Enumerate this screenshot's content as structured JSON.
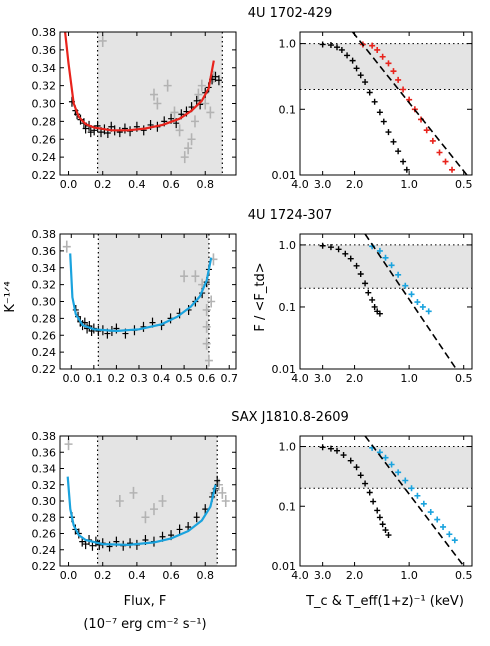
{
  "panels_meta": {
    "left_xlabel": "Flux, F",
    "left_xunits": "(10⁻⁷ erg cm⁻² s⁻¹)",
    "left_ylabel": "K⁻¹ᐟ⁴",
    "right_ylabel": "F / <F_td>",
    "right_xlabel": "T_c & T_eff(1+z)⁻¹ (keV)"
  },
  "colors": {
    "red_fit": "#e8231c",
    "blue_fit": "#1aa3de",
    "band": "#e4e4e4",
    "grey_points": "#b3b3b3",
    "black_points": "#000000"
  },
  "chart_data": [
    {
      "type": "scatter",
      "title": "4U 1702-429",
      "panel": "K_vs_flux",
      "xlim": [
        -0.05,
        0.98
      ],
      "ylim": [
        0.22,
        0.38
      ],
      "xticks": [
        "0.0",
        "0.2",
        "0.4",
        "0.6",
        "0.8"
      ],
      "yticks": [
        "0.22",
        "0.24",
        "0.26",
        "0.28",
        "0.30",
        "0.32",
        "0.34",
        "0.36",
        "0.38"
      ],
      "band": [
        0.17,
        0.9
      ],
      "vlines": [
        0.17,
        0.9
      ],
      "fit_color": "red",
      "fit": [
        [
          -0.02,
          0.38
        ],
        [
          0.0,
          0.345
        ],
        [
          0.03,
          0.3
        ],
        [
          0.06,
          0.285
        ],
        [
          0.1,
          0.277
        ],
        [
          0.15,
          0.273
        ],
        [
          0.25,
          0.27
        ],
        [
          0.35,
          0.27
        ],
        [
          0.45,
          0.272
        ],
        [
          0.55,
          0.276
        ],
        [
          0.65,
          0.283
        ],
        [
          0.72,
          0.292
        ],
        [
          0.78,
          0.303
        ],
        [
          0.82,
          0.317
        ],
        [
          0.85,
          0.348
        ]
      ],
      "points_black": [
        [
          0.02,
          0.302
        ],
        [
          0.04,
          0.292
        ],
        [
          0.05,
          0.288
        ],
        [
          0.07,
          0.282
        ],
        [
          0.09,
          0.278
        ],
        [
          0.1,
          0.272
        ],
        [
          0.12,
          0.275
        ],
        [
          0.13,
          0.268
        ],
        [
          0.15,
          0.27
        ],
        [
          0.17,
          0.275
        ],
        [
          0.19,
          0.268
        ],
        [
          0.21,
          0.271
        ],
        [
          0.23,
          0.267
        ],
        [
          0.25,
          0.274
        ],
        [
          0.27,
          0.27
        ],
        [
          0.3,
          0.268
        ],
        [
          0.33,
          0.272
        ],
        [
          0.36,
          0.269
        ],
        [
          0.4,
          0.274
        ],
        [
          0.44,
          0.27
        ],
        [
          0.48,
          0.276
        ],
        [
          0.52,
          0.274
        ],
        [
          0.56,
          0.28
        ],
        [
          0.6,
          0.283
        ],
        [
          0.63,
          0.278
        ],
        [
          0.66,
          0.288
        ],
        [
          0.69,
          0.291
        ],
        [
          0.72,
          0.296
        ],
        [
          0.75,
          0.303
        ],
        [
          0.77,
          0.299
        ],
        [
          0.8,
          0.312
        ],
        [
          0.82,
          0.318
        ],
        [
          0.84,
          0.327
        ],
        [
          0.86,
          0.33
        ],
        [
          0.88,
          0.326
        ]
      ],
      "points_grey": [
        [
          0.2,
          0.37
        ],
        [
          0.5,
          0.31
        ],
        [
          0.52,
          0.3
        ],
        [
          0.58,
          0.32
        ],
        [
          0.62,
          0.29
        ],
        [
          0.65,
          0.27
        ],
        [
          0.68,
          0.24
        ],
        [
          0.7,
          0.25
        ],
        [
          0.72,
          0.26
        ],
        [
          0.74,
          0.28
        ],
        [
          0.76,
          0.31
        ],
        [
          0.78,
          0.32
        ],
        [
          0.8,
          0.3
        ],
        [
          0.83,
          0.29
        ],
        [
          0.85,
          0.33
        ]
      ]
    },
    {
      "type": "scatter",
      "title": "",
      "panel": "F_vs_T",
      "ylog": true,
      "xlim": [
        4.0,
        0.45
      ],
      "ylim": [
        0.01,
        1.5
      ],
      "xticks": [
        "4.0",
        "3.0",
        "2.0",
        "1.0",
        "0.5"
      ],
      "yticks": [
        "1.0",
        "0.1",
        "0.01"
      ],
      "band": [
        0.2,
        1.0
      ],
      "dashed": [
        [
          2.05,
          1.5
        ],
        [
          0.48,
          0.01
        ]
      ],
      "series_black": [
        [
          3.0,
          0.97
        ],
        [
          2.7,
          0.95
        ],
        [
          2.5,
          0.88
        ],
        [
          2.35,
          0.8
        ],
        [
          2.2,
          0.66
        ],
        [
          2.05,
          0.55
        ],
        [
          1.95,
          0.42
        ],
        [
          1.85,
          0.33
        ],
        [
          1.75,
          0.26
        ],
        [
          1.65,
          0.18
        ],
        [
          1.55,
          0.13
        ],
        [
          1.45,
          0.09
        ],
        [
          1.38,
          0.065
        ],
        [
          1.3,
          0.045
        ],
        [
          1.22,
          0.032
        ],
        [
          1.15,
          0.023
        ],
        [
          1.08,
          0.016
        ],
        [
          1.03,
          0.012
        ]
      ],
      "series_red": [
        [
          1.8,
          0.97
        ],
        [
          1.6,
          0.93
        ],
        [
          1.5,
          0.8
        ],
        [
          1.4,
          0.63
        ],
        [
          1.3,
          0.5
        ],
        [
          1.22,
          0.38
        ],
        [
          1.15,
          0.28
        ],
        [
          1.08,
          0.2
        ],
        [
          1.0,
          0.14
        ],
        [
          0.93,
          0.1
        ],
        [
          0.86,
          0.07
        ],
        [
          0.8,
          0.048
        ],
        [
          0.74,
          0.033
        ],
        [
          0.68,
          0.022
        ],
        [
          0.63,
          0.016
        ],
        [
          0.58,
          0.012
        ]
      ]
    },
    {
      "type": "scatter",
      "title": "4U 1724-307",
      "panel": "K_vs_flux",
      "xlim": [
        -0.05,
        0.73
      ],
      "ylim": [
        0.22,
        0.38
      ],
      "xticks": [
        "0.0",
        "0.1",
        "0.2",
        "0.3",
        "0.4",
        "0.5",
        "0.6",
        "0.7"
      ],
      "yticks": [
        "0.22",
        "0.24",
        "0.26",
        "0.28",
        "0.30",
        "0.32",
        "0.34",
        "0.36",
        "0.38"
      ],
      "band": [
        0.12,
        0.61
      ],
      "vlines": [
        0.12,
        0.61
      ],
      "fit_color": "blue",
      "fit": [
        [
          -0.005,
          0.357
        ],
        [
          0.005,
          0.305
        ],
        [
          0.02,
          0.285
        ],
        [
          0.05,
          0.272
        ],
        [
          0.1,
          0.267
        ],
        [
          0.2,
          0.265
        ],
        [
          0.3,
          0.267
        ],
        [
          0.4,
          0.273
        ],
        [
          0.47,
          0.282
        ],
        [
          0.53,
          0.294
        ],
        [
          0.57,
          0.306
        ],
        [
          0.6,
          0.325
        ],
        [
          0.62,
          0.352
        ]
      ],
      "points_black": [
        [
          0.02,
          0.29
        ],
        [
          0.03,
          0.282
        ],
        [
          0.04,
          0.276
        ],
        [
          0.05,
          0.272
        ],
        [
          0.06,
          0.275
        ],
        [
          0.07,
          0.268
        ],
        [
          0.08,
          0.271
        ],
        [
          0.09,
          0.265
        ],
        [
          0.1,
          0.268
        ],
        [
          0.12,
          0.265
        ],
        [
          0.14,
          0.266
        ],
        [
          0.16,
          0.262
        ],
        [
          0.18,
          0.265
        ],
        [
          0.2,
          0.268
        ],
        [
          0.24,
          0.262
        ],
        [
          0.28,
          0.266
        ],
        [
          0.32,
          0.27
        ],
        [
          0.36,
          0.275
        ],
        [
          0.4,
          0.272
        ],
        [
          0.44,
          0.28
        ],
        [
          0.48,
          0.286
        ],
        [
          0.52,
          0.29
        ],
        [
          0.55,
          0.3
        ],
        [
          0.58,
          0.31
        ],
        [
          0.6,
          0.323
        ],
        [
          0.61,
          0.338
        ]
      ],
      "points_grey": [
        [
          -0.02,
          0.365
        ],
        [
          0.5,
          0.33
        ],
        [
          0.55,
          0.33
        ],
        [
          0.58,
          0.32
        ],
        [
          0.6,
          0.29
        ],
        [
          0.6,
          0.27
        ],
        [
          0.6,
          0.25
        ],
        [
          0.61,
          0.23
        ],
        [
          0.62,
          0.3
        ],
        [
          0.63,
          0.35
        ]
      ]
    },
    {
      "type": "scatter",
      "title": "",
      "panel": "F_vs_T",
      "ylog": true,
      "xlim": [
        4.0,
        0.45
      ],
      "ylim": [
        0.01,
        1.5
      ],
      "xticks": [
        "4.0",
        "3.0",
        "2.0",
        "1.0",
        "0.5"
      ],
      "yticks": [
        "1.0",
        "0.1",
        "0.01"
      ],
      "band": [
        0.2,
        1.0
      ],
      "dashed": [
        [
          1.75,
          1.5
        ],
        [
          0.55,
          0.01
        ]
      ],
      "series_black": [
        [
          3.0,
          0.97
        ],
        [
          2.7,
          0.92
        ],
        [
          2.45,
          0.85
        ],
        [
          2.25,
          0.72
        ],
        [
          2.1,
          0.6
        ],
        [
          1.95,
          0.46
        ],
        [
          1.85,
          0.34
        ],
        [
          1.75,
          0.24
        ],
        [
          1.68,
          0.17
        ],
        [
          1.6,
          0.13
        ],
        [
          1.55,
          0.1
        ],
        [
          1.5,
          0.085
        ],
        [
          1.45,
          0.078
        ]
      ],
      "series_blue": [
        [
          1.6,
          0.95
        ],
        [
          1.45,
          0.8
        ],
        [
          1.35,
          0.62
        ],
        [
          1.25,
          0.47
        ],
        [
          1.15,
          0.33
        ],
        [
          1.05,
          0.22
        ],
        [
          0.97,
          0.16
        ],
        [
          0.9,
          0.12
        ],
        [
          0.84,
          0.1
        ],
        [
          0.78,
          0.085
        ]
      ]
    },
    {
      "type": "scatter",
      "title": "SAX J1810.8-2609",
      "panel": "K_vs_flux",
      "xlim": [
        -0.05,
        0.98
      ],
      "ylim": [
        0.22,
        0.38
      ],
      "xticks": [
        "0.0",
        "0.2",
        "0.4",
        "0.6",
        "0.8"
      ],
      "yticks": [
        "0.22",
        "0.24",
        "0.26",
        "0.28",
        "0.30",
        "0.32",
        "0.34",
        "0.36",
        "0.38"
      ],
      "band": [
        0.17,
        0.87
      ],
      "vlines": [
        0.17,
        0.87
      ],
      "fit_color": "blue",
      "fit": [
        [
          -0.005,
          0.33
        ],
        [
          0.01,
          0.29
        ],
        [
          0.03,
          0.27
        ],
        [
          0.06,
          0.258
        ],
        [
          0.1,
          0.252
        ],
        [
          0.2,
          0.247
        ],
        [
          0.35,
          0.246
        ],
        [
          0.5,
          0.249
        ],
        [
          0.6,
          0.254
        ],
        [
          0.7,
          0.263
        ],
        [
          0.78,
          0.276
        ],
        [
          0.83,
          0.293
        ],
        [
          0.86,
          0.32
        ]
      ],
      "points_black": [
        [
          0.02,
          0.28
        ],
        [
          0.04,
          0.265
        ],
        [
          0.06,
          0.26
        ],
        [
          0.08,
          0.25
        ],
        [
          0.1,
          0.247
        ],
        [
          0.12,
          0.252
        ],
        [
          0.14,
          0.245
        ],
        [
          0.16,
          0.25
        ],
        [
          0.18,
          0.246
        ],
        [
          0.2,
          0.248
        ],
        [
          0.24,
          0.244
        ],
        [
          0.28,
          0.25
        ],
        [
          0.32,
          0.245
        ],
        [
          0.36,
          0.248
        ],
        [
          0.4,
          0.246
        ],
        [
          0.45,
          0.252
        ],
        [
          0.5,
          0.25
        ],
        [
          0.55,
          0.256
        ],
        [
          0.6,
          0.258
        ],
        [
          0.65,
          0.265
        ],
        [
          0.7,
          0.268
        ],
        [
          0.75,
          0.28
        ],
        [
          0.8,
          0.29
        ],
        [
          0.84,
          0.305
        ],
        [
          0.86,
          0.315
        ],
        [
          0.87,
          0.325
        ]
      ],
      "points_grey": [
        [
          0.0,
          0.37
        ],
        [
          0.3,
          0.3
        ],
        [
          0.38,
          0.31
        ],
        [
          0.45,
          0.28
        ],
        [
          0.5,
          0.29
        ],
        [
          0.55,
          0.3
        ],
        [
          0.85,
          0.31
        ],
        [
          0.88,
          0.32
        ],
        [
          0.9,
          0.31
        ],
        [
          0.92,
          0.3
        ]
      ]
    },
    {
      "type": "scatter",
      "title": "",
      "panel": "F_vs_T",
      "ylog": true,
      "xlim": [
        4.0,
        0.45
      ],
      "ylim": [
        0.01,
        1.5
      ],
      "xticks": [
        "4.0",
        "3.0",
        "2.0",
        "1.0",
        "0.5"
      ],
      "yticks": [
        "1.0",
        "0.1",
        "0.01"
      ],
      "band": [
        0.2,
        1.0
      ],
      "dashed": [
        [
          1.75,
          1.5
        ],
        [
          0.5,
          0.01
        ]
      ],
      "series_black": [
        [
          3.0,
          0.97
        ],
        [
          2.7,
          0.92
        ],
        [
          2.5,
          0.85
        ],
        [
          2.3,
          0.72
        ],
        [
          2.1,
          0.58
        ],
        [
          1.95,
          0.45
        ],
        [
          1.85,
          0.33
        ],
        [
          1.75,
          0.24
        ],
        [
          1.65,
          0.17
        ],
        [
          1.58,
          0.12
        ],
        [
          1.5,
          0.085
        ],
        [
          1.45,
          0.065
        ],
        [
          1.4,
          0.05
        ],
        [
          1.35,
          0.04
        ],
        [
          1.3,
          0.033
        ]
      ],
      "series_blue": [
        [
          1.6,
          0.95
        ],
        [
          1.45,
          0.8
        ],
        [
          1.35,
          0.65
        ],
        [
          1.25,
          0.5
        ],
        [
          1.15,
          0.37
        ],
        [
          1.05,
          0.27
        ],
        [
          0.97,
          0.2
        ],
        [
          0.9,
          0.15
        ],
        [
          0.83,
          0.11
        ],
        [
          0.76,
          0.08
        ],
        [
          0.7,
          0.06
        ],
        [
          0.65,
          0.045
        ],
        [
          0.6,
          0.034
        ],
        [
          0.56,
          0.027
        ]
      ]
    }
  ]
}
